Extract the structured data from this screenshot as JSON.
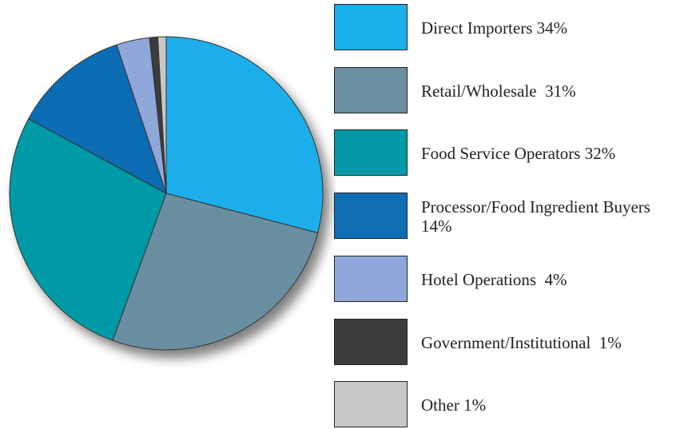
{
  "chart_data": {
    "type": "pie",
    "categories": [
      "Direct Importers",
      "Retail/Wholesale ",
      "Food Service Operators",
      "Processor/Food Ingredient Buyers ",
      "Hotel Operations ",
      "Government/Institutional ",
      "Other"
    ],
    "values": [
      34,
      31,
      32,
      14,
      4,
      1,
      1
    ],
    "value_labels": [
      "34%",
      "31%",
      "32%",
      "14%",
      "4%",
      "1%",
      "1%"
    ],
    "colors": [
      "#1aaeea",
      "#6b8ea1",
      "#0499a6",
      "#0f6db4",
      "#8fa8d9",
      "#3b3c3e",
      "#c6c7c9"
    ]
  }
}
